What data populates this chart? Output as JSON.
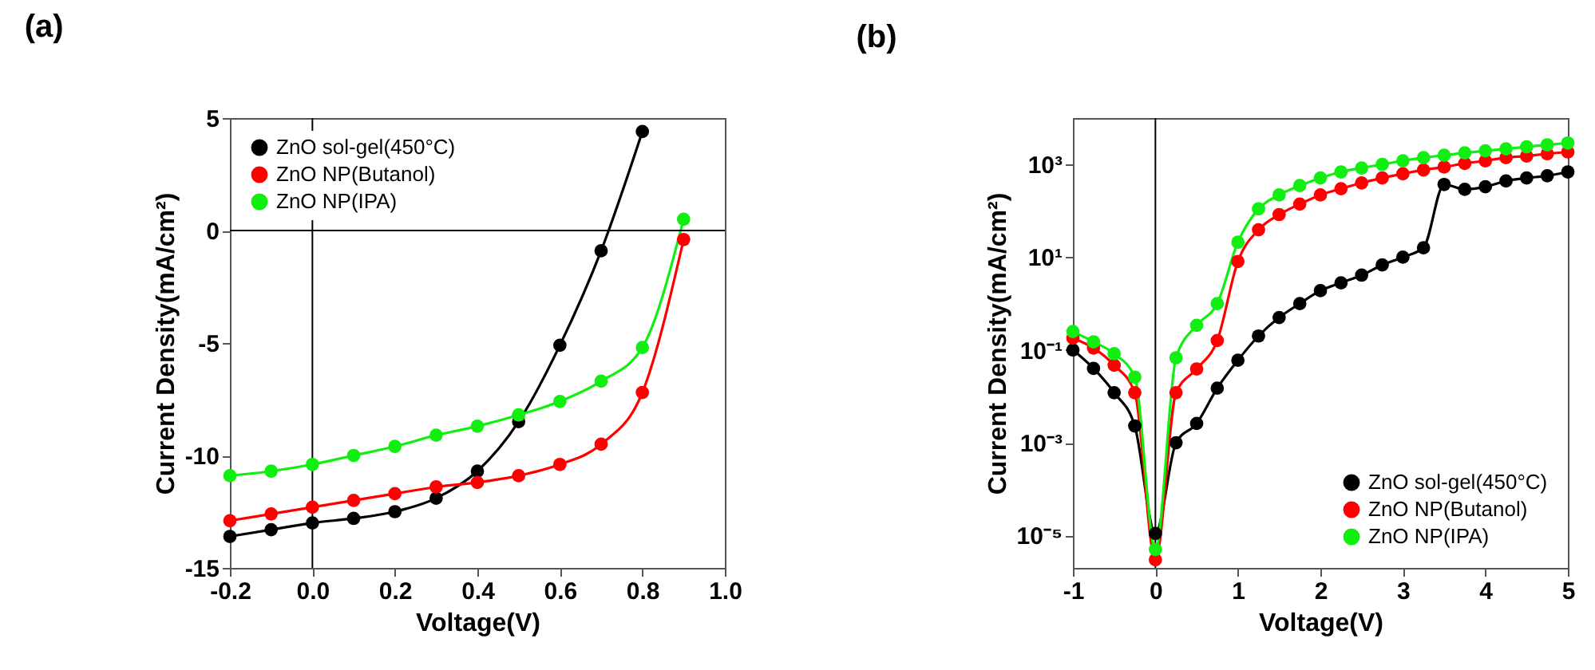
{
  "chart_data": [
    {
      "type": "line",
      "title": "(a)",
      "xlabel": "Voltage(V)",
      "ylabel": "Current Density(mA/cm²)",
      "marker": "circle",
      "line_style": "solid",
      "legend": "top left",
      "grid": false,
      "x": [
        -0.2,
        -0.1,
        0,
        0.1,
        0.2,
        0.3,
        0.4,
        0.5,
        0.6,
        0.7,
        0.8,
        0.9
      ],
      "xlim": [
        -0.2,
        1.0
      ],
      "xticks": [
        {
          "value": -0.2,
          "label": "-0.2"
        },
        {
          "value": 0,
          "label": "0.0"
        },
        {
          "value": 0.2,
          "label": "0.2"
        },
        {
          "value": 0.4,
          "label": "0.4"
        },
        {
          "value": 0.6,
          "label": "0.6"
        },
        {
          "value": 0.8,
          "label": "0.8"
        },
        {
          "value": 1,
          "label": "1.0"
        }
      ],
      "ylim": [
        -15,
        5
      ],
      "yticks": [
        -15,
        -10,
        -5,
        0,
        5
      ],
      "ref_lines": [
        {
          "axis": "x",
          "value": 0
        },
        {
          "axis": "y",
          "value": 0
        }
      ],
      "series": [
        {
          "name": "ZnO sol-gel(450°C)",
          "color": "#000000",
          "values": [
            -13.6,
            -13.3,
            -13.0,
            -12.8,
            -12.5,
            -11.9,
            -10.7,
            -8.5,
            -5.1,
            -0.9,
            4.4,
            null
          ]
        },
        {
          "name": "ZnO NP(Butanol)",
          "color": "#ff0000",
          "values": [
            -12.9,
            -12.6,
            -12.3,
            -12.0,
            -11.7,
            -11.4,
            -11.2,
            -10.9,
            -10.4,
            -9.5,
            -7.2,
            -0.4
          ]
        },
        {
          "name": "ZnO NP(IPA)",
          "color": "#11ee11",
          "values": [
            -10.9,
            -10.7,
            -10.4,
            -10.0,
            -9.6,
            -9.1,
            -8.7,
            -8.2,
            -7.6,
            -6.7,
            -5.2,
            0.5
          ]
        }
      ]
    },
    {
      "type": "line",
      "title": "(b)",
      "xlabel": "Voltage(V)",
      "ylabel": "Current Density(mA/cm²)",
      "marker": "circle",
      "line_style": "solid",
      "legend": "bottom right",
      "grid": false,
      "log": "y",
      "x": [
        -1,
        -0.75,
        -0.5,
        -0.25,
        0,
        0.25,
        0.5,
        0.75,
        1,
        1.25,
        1.5,
        1.75,
        2,
        2.25,
        2.5,
        2.75,
        3,
        3.25,
        3.5,
        3.75,
        4,
        4.25,
        4.5,
        4.75,
        5
      ],
      "xlim": [
        -1,
        5
      ],
      "xticks": [
        -1,
        0,
        1,
        2,
        3,
        4,
        5
      ],
      "ylim": [
        2e-06,
        10000
      ],
      "yticks": [
        {
          "value": 1e-05,
          "label": "10⁻⁵"
        },
        {
          "value": 0.001,
          "label": "10⁻³"
        },
        {
          "value": 0.1,
          "label": "10⁻¹"
        },
        {
          "value": 10,
          "label": "10¹"
        },
        {
          "value": 1000,
          "label": "10³"
        }
      ],
      "ref_lines": [
        {
          "axis": "x",
          "value": 0
        }
      ],
      "series": [
        {
          "name": "ZnO sol-gel(450°C)",
          "color": "#000000",
          "values": [
            0.1,
            0.04,
            0.012,
            0.0023,
            1.1e-05,
            0.001,
            0.0026,
            0.015,
            0.06,
            0.2,
            0.5,
            1.0,
            1.9,
            2.8,
            4.1,
            6.8,
            10,
            16,
            370,
            290,
            330,
            440,
            510,
            570,
            690
          ]
        },
        {
          "name": "ZnO NP(Butanol)",
          "color": "#ff0000",
          "values": [
            0.18,
            0.11,
            0.047,
            0.012,
            3e-06,
            0.012,
            0.039,
            0.16,
            8.1,
            39,
            83,
            140,
            220,
            300,
            400,
            510,
            630,
            760,
            880,
            1050,
            1200,
            1400,
            1520,
            1700,
            1860
          ]
        },
        {
          "name": "ZnO NP(IPA)",
          "color": "#11ee11",
          "values": [
            0.25,
            0.15,
            0.083,
            0.026,
            5e-06,
            0.068,
            0.34,
            1.0,
            21,
            110,
            220,
            350,
            510,
            690,
            840,
            1000,
            1200,
            1400,
            1580,
            1780,
            1960,
            2170,
            2400,
            2650,
            2900
          ]
        }
      ]
    }
  ]
}
